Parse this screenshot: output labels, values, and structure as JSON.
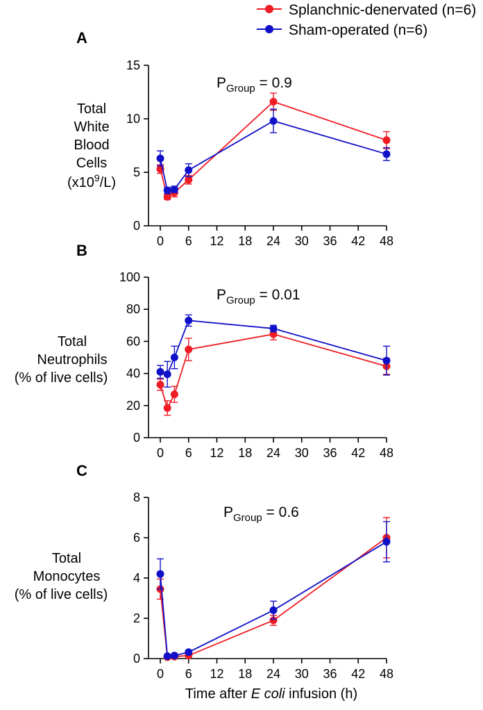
{
  "legend": [
    {
      "label": "Splanchnic-denervated (n=6)",
      "color": "#ee1c25"
    },
    {
      "label": "Sham-operated (n=6)",
      "color": "#1010c8"
    }
  ],
  "xaxis_label_prefix": "Time after ",
  "xaxis_label_italic": "E coli",
  "xaxis_label_suffix": " infusion (h)",
  "chart_data": [
    {
      "type": "line",
      "panel": "A",
      "ylabel_lines": [
        "Total",
        "White",
        "Blood",
        "Cells"
      ],
      "ylabel_unit_prefix": "(x10",
      "ylabel_unit_sup": "9",
      "ylabel_unit_suffix": "/L)",
      "annotation_main": "P",
      "annotation_sub": "Group",
      "annotation_value": " = 0.9",
      "x": [
        0,
        1.5,
        3,
        6,
        24,
        48
      ],
      "xticks": [
        0,
        6,
        12,
        18,
        24,
        30,
        36,
        42,
        48
      ],
      "xlim": [
        0,
        48
      ],
      "yticks": [
        0,
        5,
        10,
        15
      ],
      "ylim": [
        0,
        15
      ],
      "series": [
        {
          "name": "Splanchnic-denervated (n=6)",
          "color": "#ee1c25",
          "values": [
            5.3,
            2.7,
            3.1,
            4.3,
            11.6,
            8.0
          ],
          "errors": [
            0.4,
            0.25,
            0.4,
            0.4,
            0.8,
            0.8
          ]
        },
        {
          "name": "Sham-operated (n=6)",
          "color": "#1010c8",
          "values": [
            6.3,
            3.3,
            3.4,
            5.2,
            9.8,
            6.7
          ],
          "errors": [
            0.7,
            0.3,
            0.3,
            0.6,
            1.1,
            0.6
          ]
        }
      ]
    },
    {
      "type": "line",
      "panel": "B",
      "ylabel_lines": [
        "Total",
        "Neutrophils",
        "(% of live cells)"
      ],
      "annotation_main": "P",
      "annotation_sub": "Group",
      "annotation_value": " = 0.01",
      "x": [
        0,
        1.5,
        3,
        6,
        24,
        48
      ],
      "xticks": [
        0,
        6,
        12,
        18,
        24,
        30,
        36,
        42,
        48
      ],
      "xlim": [
        0,
        48
      ],
      "yticks": [
        0,
        20,
        40,
        60,
        80,
        100
      ],
      "ylim": [
        0,
        100
      ],
      "series": [
        {
          "name": "Splanchnic-denervated (n=6)",
          "color": "#ee1c25",
          "values": [
            33,
            18.5,
            27,
            55,
            64.5,
            44.5
          ],
          "errors": [
            3.5,
            4.5,
            5,
            7,
            3.5,
            5
          ]
        },
        {
          "name": "Sham-operated (n=6)",
          "color": "#1010c8",
          "values": [
            41,
            39.5,
            50,
            73,
            68,
            48
          ],
          "errors": [
            4,
            8,
            7,
            3.5,
            2,
            9
          ]
        }
      ]
    },
    {
      "type": "line",
      "panel": "C",
      "ylabel_lines": [
        "Total",
        "Monocytes",
        "(% of live cells)"
      ],
      "annotation_main": "P",
      "annotation_sub": "Group",
      "annotation_value": " = 0.6",
      "x": [
        0,
        1.5,
        3,
        6,
        24,
        48
      ],
      "xticks": [
        0,
        6,
        12,
        18,
        24,
        30,
        36,
        42,
        48
      ],
      "xlim": [
        0,
        48
      ],
      "yticks": [
        0,
        2,
        4,
        6,
        8
      ],
      "ylim": [
        0,
        8
      ],
      "series": [
        {
          "name": "Splanchnic-denervated (n=6)",
          "color": "#ee1c25",
          "values": [
            3.45,
            0.07,
            0.1,
            0.15,
            1.9,
            6.0
          ],
          "errors": [
            0.5,
            0.05,
            0.05,
            0.05,
            0.25,
            1.0
          ]
        },
        {
          "name": "Sham-operated (n=6)",
          "color": "#1010c8",
          "values": [
            4.2,
            0.12,
            0.15,
            0.32,
            2.4,
            5.8
          ],
          "errors": [
            0.75,
            0.05,
            0.05,
            0.05,
            0.45,
            1.0
          ]
        }
      ]
    }
  ]
}
